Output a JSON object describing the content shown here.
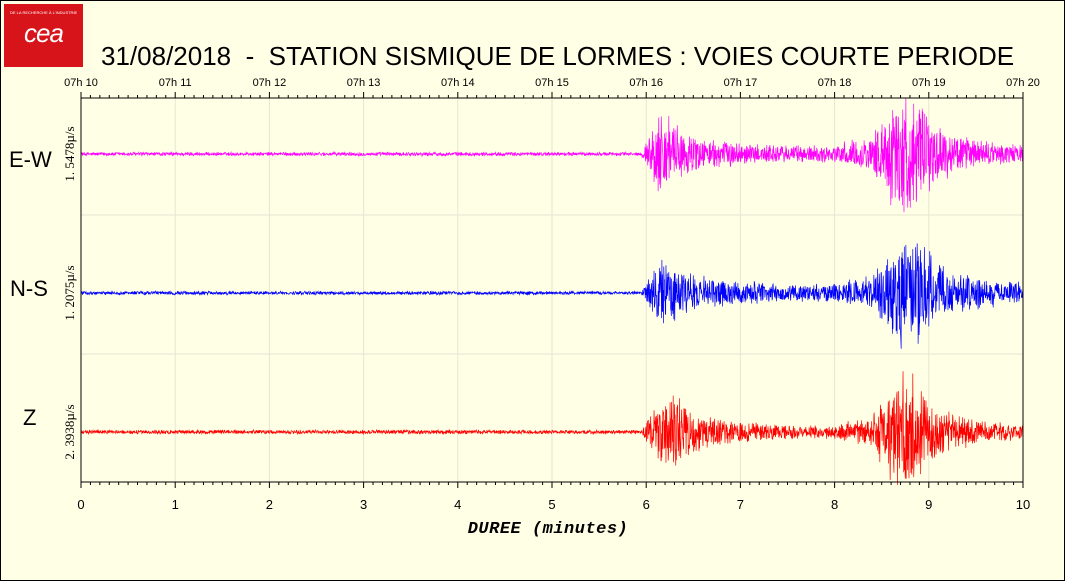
{
  "logo": {
    "text": "cea",
    "tagline": "DE LA RECHERCHE À L'INDUSTRIE"
  },
  "title": "31/08/2018  -  STATION SISMIQUE DE LORMES : VOIES COURTE PERIODE",
  "chart_data": {
    "type": "line",
    "title": "31/08/2018  -  STATION SISMIQUE DE LORMES : VOIES COURTE PERIODE",
    "xlabel": "DUREE (minutes)",
    "xlim": [
      0,
      10
    ],
    "x_ticks": [
      0,
      1,
      2,
      3,
      4,
      5,
      6,
      7,
      8,
      9,
      10
    ],
    "top_time_ticks": [
      "07h 10",
      "07h 11",
      "07h 12",
      "07h 13",
      "07h 14",
      "07h 15",
      "07h 16",
      "07h 17",
      "07h 18",
      "07h 19",
      "07h 20"
    ],
    "grid": true,
    "series": [
      {
        "name": "E-W",
        "scale_label": "1. 5478µ/s",
        "color": "#ff00ff",
        "envelope": {
          "x": [
            0,
            5.95,
            6.05,
            6.15,
            6.25,
            6.4,
            6.6,
            7.0,
            7.5,
            8.0,
            8.4,
            8.6,
            8.75,
            8.9,
            9.1,
            9.3,
            9.6,
            10
          ],
          "amplitude": [
            0.03,
            0.03,
            0.35,
            0.75,
            0.55,
            0.35,
            0.25,
            0.18,
            0.14,
            0.14,
            0.3,
            0.8,
            1.0,
            0.75,
            0.45,
            0.3,
            0.2,
            0.15
          ]
        }
      },
      {
        "name": "N-S",
        "scale_label": "1. 2075µ/s",
        "color": "#0000ff",
        "envelope": {
          "x": [
            0,
            5.95,
            6.05,
            6.15,
            6.3,
            6.45,
            6.7,
            7.0,
            7.5,
            8.0,
            8.4,
            8.6,
            8.75,
            8.9,
            9.1,
            9.3,
            9.6,
            10
          ],
          "amplitude": [
            0.03,
            0.03,
            0.35,
            0.6,
            0.55,
            0.35,
            0.25,
            0.2,
            0.16,
            0.16,
            0.3,
            0.75,
            1.0,
            0.85,
            0.55,
            0.35,
            0.25,
            0.2
          ]
        }
      },
      {
        "name": "Z",
        "scale_label": "2. 3938µ/s",
        "color": "#ff0000",
        "envelope": {
          "x": [
            0,
            5.95,
            6.05,
            6.15,
            6.35,
            6.5,
            6.7,
            7.0,
            7.5,
            8.0,
            8.4,
            8.6,
            8.75,
            8.85,
            9.0,
            9.2,
            9.5,
            10
          ],
          "amplitude": [
            0.03,
            0.03,
            0.3,
            0.55,
            0.55,
            0.3,
            0.2,
            0.15,
            0.1,
            0.1,
            0.25,
            0.7,
            1.0,
            0.8,
            0.5,
            0.3,
            0.18,
            0.1
          ]
        }
      }
    ]
  }
}
